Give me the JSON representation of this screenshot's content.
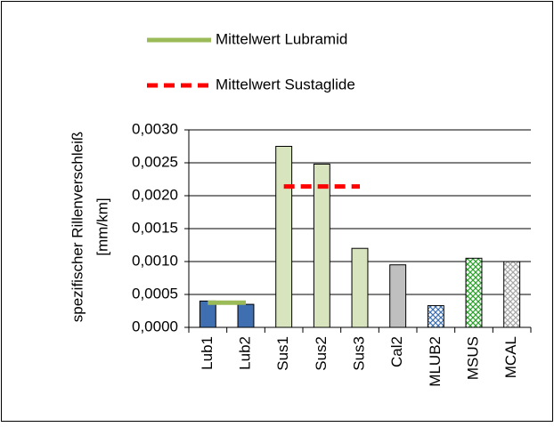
{
  "chart_data": {
    "type": "bar",
    "categories": [
      "Lub1",
      "Lub2",
      "Sus1",
      "Sus2",
      "Sus3",
      "Cal2",
      "MLUB2",
      "MSUS",
      "MCAL"
    ],
    "values": [
      0.0004,
      0.00035,
      0.00275,
      0.00248,
      0.0012,
      0.00095,
      0.00033,
      0.00105,
      0.001
    ],
    "colors": [
      "#3f6fb0",
      "#3f6fb0",
      "#d7e4bd",
      "#d7e4bd",
      "#d7e4bd",
      "#bfbfbf",
      "#3f6fb0",
      "#2ca02c",
      "#a6a6a6"
    ],
    "patterned": [
      false,
      false,
      false,
      false,
      false,
      false,
      true,
      true,
      true
    ],
    "lines": [
      {
        "name": "Mittelwert Lubramid",
        "color": "#9bbb59",
        "dashed": false,
        "values": [
          0.000375,
          0.000375,
          null,
          null,
          null,
          null,
          null,
          null,
          null
        ]
      },
      {
        "name": "Mittelwert Sustaglide",
        "color": "#ff0000",
        "dashed": true,
        "values": [
          null,
          null,
          0.00214,
          0.00214,
          0.00214,
          null,
          null,
          null,
          null
        ]
      }
    ],
    "y_label": [
      "spezifischer Rillenverschleiß",
      "[mm/km]"
    ],
    "ylim": [
      0,
      0.003
    ],
    "yticks": [
      {
        "value": 0,
        "label": "0,0000"
      },
      {
        "value": 0.0005,
        "label": "0,0005"
      },
      {
        "value": 0.001,
        "label": "0,0010"
      },
      {
        "value": 0.0015,
        "label": "0,0015"
      },
      {
        "value": 0.002,
        "label": "0,0020"
      },
      {
        "value": 0.0025,
        "label": "0,0025"
      },
      {
        "value": 0.003,
        "label": "0,0030"
      }
    ],
    "grid": true,
    "legend": "top"
  }
}
